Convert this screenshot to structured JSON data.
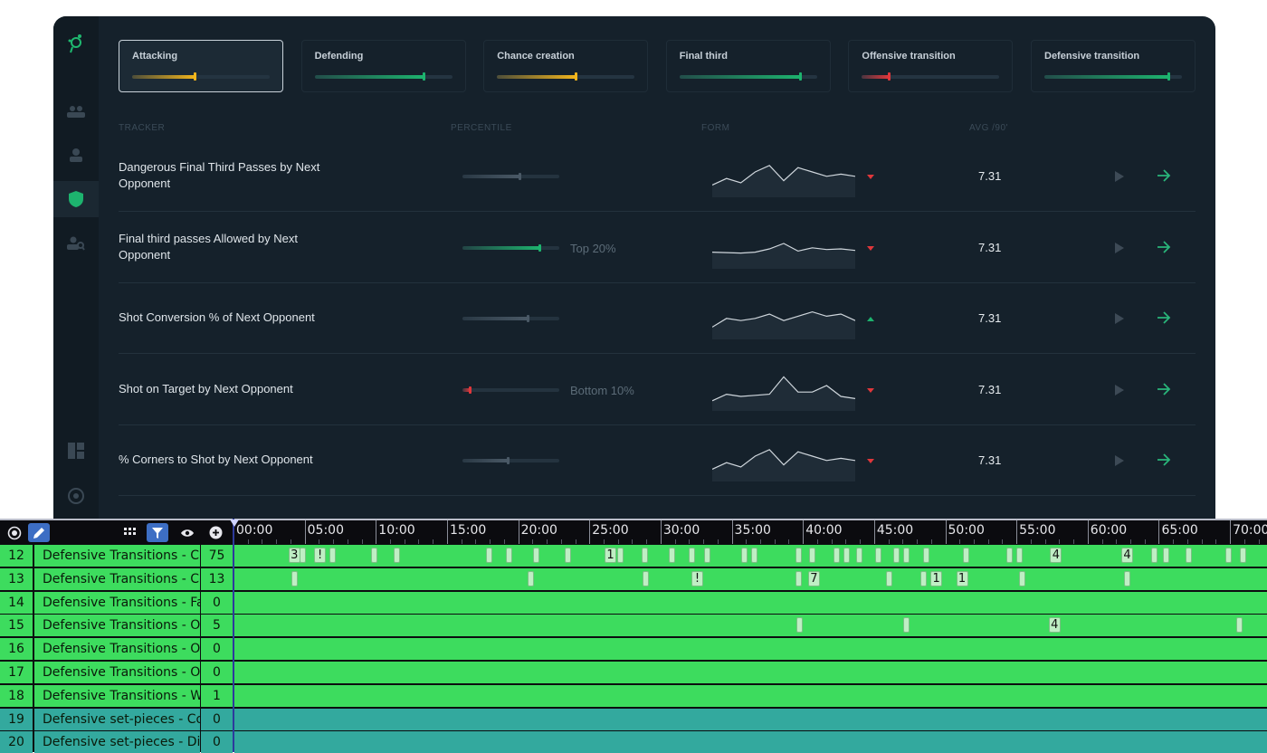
{
  "dashboard": {
    "colors": {
      "window": "#15212b",
      "sidebar": "#111b23",
      "green": "#1db36e",
      "yellow": "#f2b51c",
      "red": "#e0373b",
      "neutral": "#4a5966"
    },
    "sidebar": {
      "icons": [
        "logo-icon",
        "team-icon",
        "player-icon",
        "shield-icon",
        "scout-icon",
        "layout-icon",
        "settings-icon"
      ],
      "active": "shield-icon"
    },
    "categories": [
      {
        "label": "Attacking",
        "value": 0.46,
        "color": "#f2b51c",
        "active": true
      },
      {
        "label": "Defending",
        "value": 0.8,
        "color": "#1db36e",
        "active": false
      },
      {
        "label": "Chance creation",
        "value": 0.58,
        "color": "#f2b51c",
        "active": false
      },
      {
        "label": "Final third",
        "value": 0.88,
        "color": "#1db36e",
        "active": false
      },
      {
        "label": "Offensive transition",
        "value": 0.2,
        "color": "#e0373b",
        "active": false
      },
      {
        "label": "Defensive transition",
        "value": 0.91,
        "color": "#1db36e",
        "active": false
      }
    ],
    "columns": {
      "tracker": "TRACKER",
      "percentile": "PERCENTILE",
      "form": "FORM",
      "avg": "AVG /90'"
    },
    "rows": [
      {
        "name": "Dangerous Final Third Passes by Next Opponent",
        "percentile": 0.6,
        "bar_color": "neutral",
        "percentile_label": "",
        "form": [
          4,
          7,
          5,
          10,
          13,
          6,
          12,
          10,
          8,
          9,
          8
        ],
        "trend": "down",
        "avg": "7.31"
      },
      {
        "name": "Final third passes Allowed by Next Opponent",
        "percentile": 0.8,
        "bar_color": "green",
        "percentile_label": "Top 20%",
        "form": [
          6,
          5.8,
          5.6,
          6,
          7.5,
          10,
          6.5,
          8,
          7.2,
          7.5,
          6.8
        ],
        "trend": "down",
        "avg": "7.31"
      },
      {
        "name": "Shot Conversion % of Next Opponent",
        "percentile": 0.68,
        "bar_color": "neutral",
        "percentile_label": "",
        "form": [
          4,
          8,
          7,
          8,
          10,
          7,
          9,
          11,
          9,
          10,
          7
        ],
        "trend": "up",
        "avg": "7.31"
      },
      {
        "name": "Shot on Target by Next Opponent",
        "percentile": 0.08,
        "bar_color": "red",
        "percentile_label": "Bottom 10%",
        "form": [
          3,
          6,
          5,
          5.5,
          6,
          14,
          7,
          7,
          10,
          5,
          4
        ],
        "trend": "down",
        "avg": "7.31"
      },
      {
        "name": "% Corners to Shot by Next Opponent",
        "percentile": 0.48,
        "bar_color": "neutral",
        "percentile_label": "",
        "form": [
          4,
          7,
          5,
          10,
          13,
          6,
          12,
          10,
          8,
          9,
          8
        ],
        "trend": "down",
        "avg": "7.31"
      }
    ]
  },
  "timeline": {
    "toolbar": [
      "target-icon",
      "pen-icon",
      "grid-icon",
      "filter-icon",
      "eye-icon",
      "plus-circle-icon"
    ],
    "ruler": [
      "00:00",
      "05:00",
      "10:00",
      "15:00",
      "20:00",
      "25:00",
      "30:00",
      "35:00",
      "40:00",
      "45:00",
      "50:00",
      "55:00",
      "60:00",
      "65:00",
      "70:00"
    ],
    "colors": {
      "green": "#3ddc5e",
      "teal": "#33a99e"
    },
    "rows": [
      {
        "num": "12",
        "name": "Defensive Transitions - Cou",
        "count": "75",
        "color": "green",
        "clips": [
          {
            "t": 3.8,
            "label": "3"
          },
          {
            "t": 4.6,
            "label": ""
          },
          {
            "t": 5.6,
            "label": "!"
          },
          {
            "t": 6.7,
            "label": ""
          },
          {
            "t": 9.6,
            "label": ""
          },
          {
            "t": 11.2,
            "label": ""
          },
          {
            "t": 17.7,
            "label": ""
          },
          {
            "t": 19.1,
            "label": ""
          },
          {
            "t": 21,
            "label": ""
          },
          {
            "t": 23.2,
            "label": ""
          },
          {
            "t": 26,
            "label": "1"
          },
          {
            "t": 26.9,
            "label": ""
          },
          {
            "t": 28.6,
            "label": ""
          },
          {
            "t": 30.5,
            "label": ""
          },
          {
            "t": 31.9,
            "label": ""
          },
          {
            "t": 33,
            "label": ""
          },
          {
            "t": 35.6,
            "label": ""
          },
          {
            "t": 36.3,
            "label": ""
          },
          {
            "t": 39.4,
            "label": ""
          },
          {
            "t": 40.4,
            "label": ""
          },
          {
            "t": 42.1,
            "label": ""
          },
          {
            "t": 42.8,
            "label": ""
          },
          {
            "t": 43.7,
            "label": ""
          },
          {
            "t": 45,
            "label": ""
          },
          {
            "t": 46.3,
            "label": ""
          },
          {
            "t": 47,
            "label": ""
          },
          {
            "t": 48.4,
            "label": ""
          },
          {
            "t": 51.2,
            "label": ""
          },
          {
            "t": 54.2,
            "label": ""
          },
          {
            "t": 54.9,
            "label": ""
          },
          {
            "t": 57.3,
            "label": "4"
          },
          {
            "t": 62.3,
            "label": "4"
          },
          {
            "t": 64.4,
            "label": ""
          },
          {
            "t": 65.2,
            "label": ""
          },
          {
            "t": 66.8,
            "label": ""
          },
          {
            "t": 69.6,
            "label": ""
          },
          {
            "t": 70.6,
            "label": ""
          }
        ]
      },
      {
        "num": "13",
        "name": "Defensive Transitions - Cou",
        "count": "13",
        "color": "green",
        "clips": [
          {
            "t": 4,
            "label": ""
          },
          {
            "t": 20.6,
            "label": ""
          },
          {
            "t": 28.7,
            "label": ""
          },
          {
            "t": 32.1,
            "label": "!"
          },
          {
            "t": 39.4,
            "label": ""
          },
          {
            "t": 40.3,
            "label": "7"
          },
          {
            "t": 45.8,
            "label": ""
          },
          {
            "t": 48.2,
            "label": ""
          },
          {
            "t": 48.9,
            "label": "1"
          },
          {
            "t": 50.7,
            "label": "1"
          },
          {
            "t": 55.1,
            "label": ""
          },
          {
            "t": 62.5,
            "label": ""
          }
        ]
      },
      {
        "num": "14",
        "name": "Defensive Transitions - Fall",
        "count": "0",
        "color": "green",
        "clips": []
      },
      {
        "num": "15",
        "name": "Defensive Transitions - Opp",
        "count": "5",
        "color": "green",
        "clips": [
          {
            "t": 39.5,
            "label": ""
          },
          {
            "t": 47,
            "label": ""
          },
          {
            "t": 57.2,
            "label": "4"
          },
          {
            "t": 70.4,
            "label": ""
          }
        ]
      },
      {
        "num": "16",
        "name": "Defensive Transitions - Opp",
        "count": "0",
        "color": "green",
        "clips": []
      },
      {
        "num": "17",
        "name": "Defensive Transitions - Opp",
        "count": "0",
        "color": "green",
        "clips": []
      },
      {
        "num": "18",
        "name": "Defensive Transitions - Win",
        "count": "1",
        "color": "green",
        "clips": []
      },
      {
        "num": "19",
        "name": "Defensive set-pieces - Cori",
        "count": "0",
        "color": "teal",
        "clips": []
      },
      {
        "num": "20",
        "name": "Defensive set-pieces - Dire",
        "count": "0",
        "color": "teal",
        "clips": []
      }
    ]
  }
}
